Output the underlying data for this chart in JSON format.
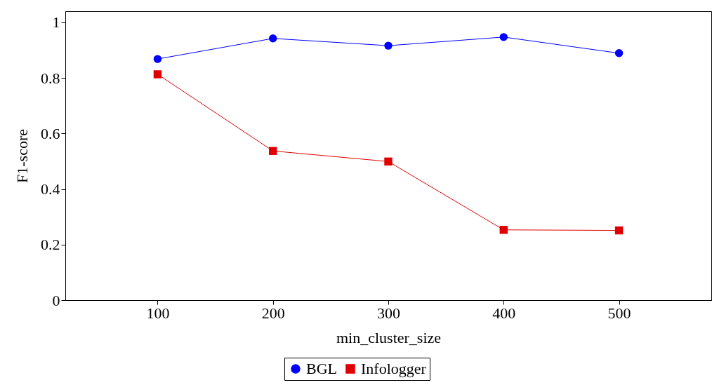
{
  "chart_data": {
    "type": "line",
    "xlabel": "min_cluster_size",
    "ylabel": "F1-score",
    "x": [
      100,
      200,
      300,
      400,
      500
    ],
    "series": [
      {
        "name": "BGL",
        "color": "#0000ff",
        "marker": "circle",
        "values": [
          0.868,
          0.942,
          0.916,
          0.947,
          0.889
        ]
      },
      {
        "name": "Infologger",
        "color": "#e00000",
        "marker": "square",
        "values": [
          0.813,
          0.537,
          0.499,
          0.253,
          0.251
        ]
      }
    ],
    "xlim": [
      20,
      580
    ],
    "ylim": [
      0,
      1.04
    ],
    "xticks": [
      100,
      200,
      300,
      400,
      500
    ],
    "yticks": [
      0,
      0.2,
      0.4,
      0.6,
      0.8,
      1
    ],
    "grid": false,
    "legend": "bottom",
    "line_style": "solid"
  }
}
